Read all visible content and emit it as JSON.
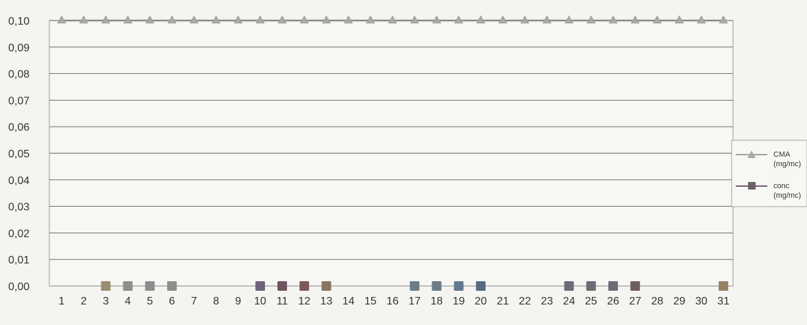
{
  "chart_data": {
    "type": "line",
    "title": "",
    "xlabel": "",
    "ylabel": "",
    "x": [
      "1",
      "2",
      "3",
      "4",
      "5",
      "6",
      "7",
      "8",
      "9",
      "10",
      "11",
      "12",
      "13",
      "14",
      "15",
      "16",
      "17",
      "18",
      "19",
      "20",
      "21",
      "22",
      "23",
      "24",
      "25",
      "26",
      "27",
      "28",
      "29",
      "30",
      "31"
    ],
    "ylim": [
      0,
      0.1
    ],
    "yticks": [
      "0,00",
      "0,01",
      "0,02",
      "0,03",
      "0,04",
      "0,05",
      "0,06",
      "0,07",
      "0,08",
      "0,09",
      "0,10"
    ],
    "grid": true,
    "legend_position": "right",
    "series": [
      {
        "name": "CMA",
        "unit": "(mg/mc)",
        "marker": "triangle",
        "color": "#9a9a9a",
        "values": [
          0.1,
          0.1,
          0.1,
          0.1,
          0.1,
          0.1,
          0.1,
          0.1,
          0.1,
          0.1,
          0.1,
          0.1,
          0.1,
          0.1,
          0.1,
          0.1,
          0.1,
          0.1,
          0.1,
          0.1,
          0.1,
          0.1,
          0.1,
          0.1,
          0.1,
          0.1,
          0.1,
          0.1,
          0.1,
          0.1,
          0.1
        ]
      },
      {
        "name": "conc",
        "unit": "(mg/mc)",
        "marker": "square",
        "color": "#6e5f6a",
        "values": [
          null,
          null,
          0,
          0,
          0,
          0,
          null,
          null,
          null,
          0,
          0,
          0,
          0,
          null,
          null,
          null,
          0,
          0,
          0,
          0,
          null,
          null,
          null,
          0,
          0,
          0,
          0,
          null,
          null,
          null,
          0
        ]
      }
    ],
    "point_colors": {
      "3": "#9a8e70",
      "4": "#8e8e8e",
      "5": "#8e8e8e",
      "6": "#8e8e8e",
      "10": "#6e6478",
      "11": "#6e5460",
      "12": "#80585a",
      "13": "#8a7560",
      "17": "#6b7d86",
      "18": "#6b7d86",
      "19": "#627a90",
      "20": "#566a82",
      "24": "#6e6a78",
      "25": "#6e6a78",
      "26": "#6e6a78",
      "27": "#6e5e60",
      "31": "#9a8266"
    }
  }
}
